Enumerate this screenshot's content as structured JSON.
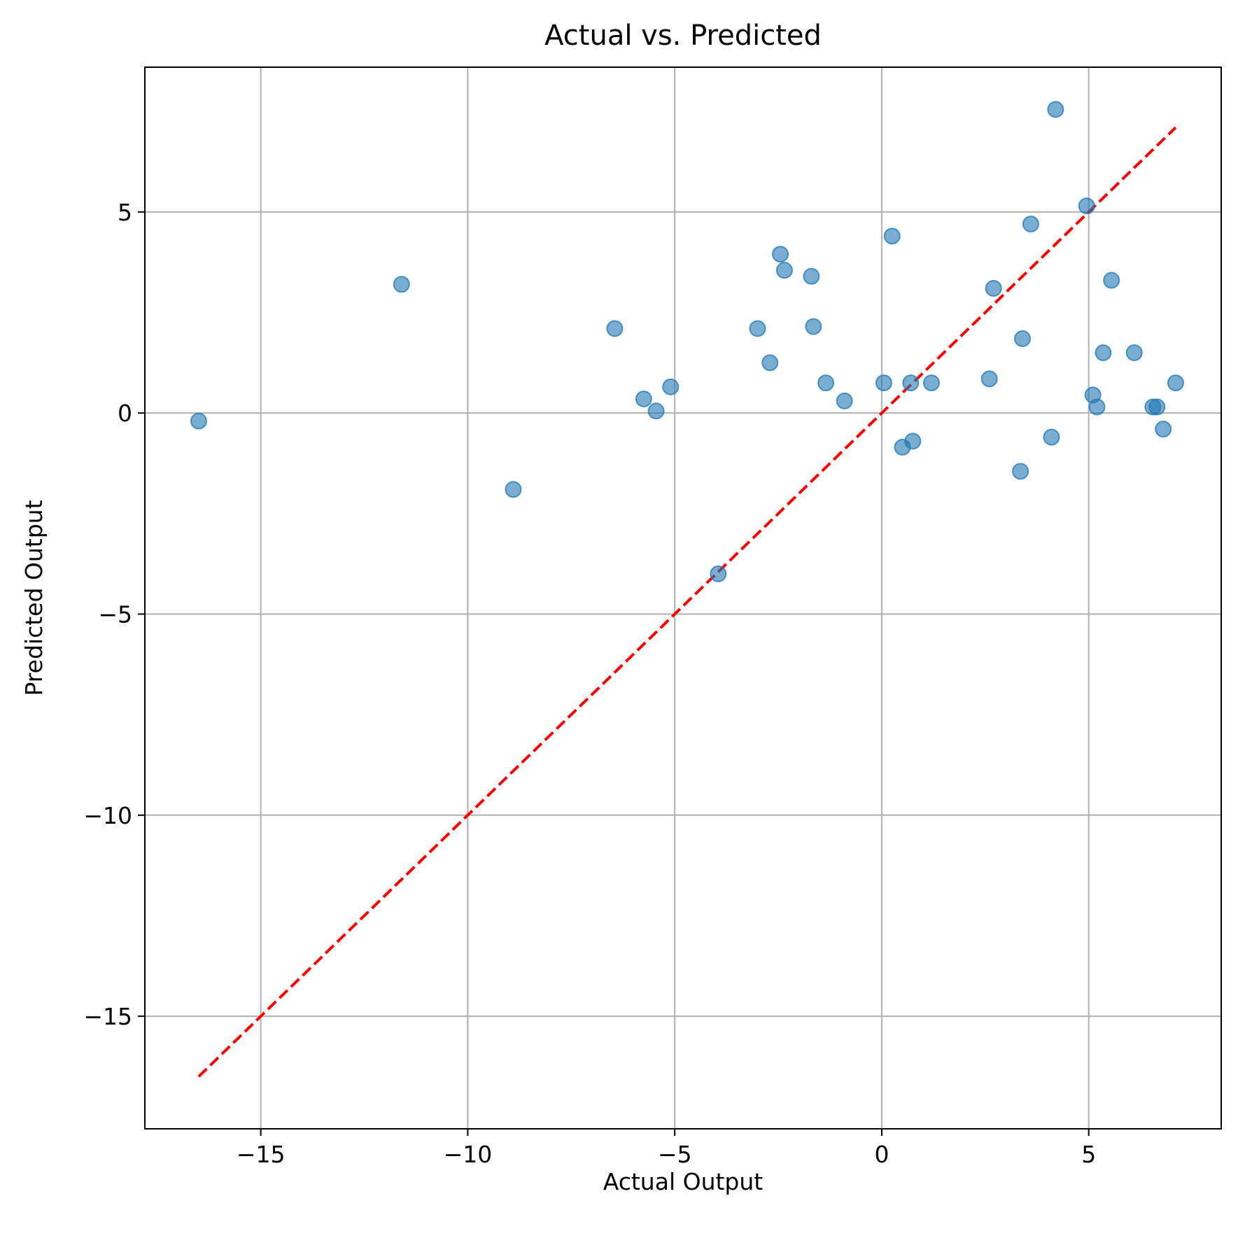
{
  "chart_data": {
    "type": "scatter",
    "title": "Actual vs. Predicted",
    "xlabel": "Actual Output",
    "ylabel": "Predicted Output",
    "xlim": [
      -17.8,
      8.2
    ],
    "ylim": [
      -17.8,
      8.6
    ],
    "xticks": [
      -15,
      -10,
      -5,
      0,
      5
    ],
    "yticks": [
      -15,
      -10,
      -5,
      0,
      5
    ],
    "xtick_labels": [
      "−15",
      "−10",
      "−5",
      "0",
      "5"
    ],
    "ytick_labels": [
      "−15",
      "−10",
      "−5",
      "0",
      "5"
    ],
    "grid": true,
    "point_color": "#1f77b4",
    "point_alpha": 0.6,
    "reference_line": {
      "style": "dashed",
      "color": "#ff0000",
      "from": [
        -16.5,
        -16.5
      ],
      "to": [
        7.1,
        7.1
      ]
    },
    "points": [
      [
        -16.5,
        -0.2
      ],
      [
        -11.6,
        3.2
      ],
      [
        -8.9,
        -1.9
      ],
      [
        -6.45,
        2.1
      ],
      [
        -5.75,
        0.35
      ],
      [
        -5.45,
        0.05
      ],
      [
        -5.1,
        0.65
      ],
      [
        -3.95,
        -4.0
      ],
      [
        -3.0,
        2.1
      ],
      [
        -2.7,
        1.25
      ],
      [
        -2.45,
        3.95
      ],
      [
        -2.35,
        3.55
      ],
      [
        -1.7,
        3.4
      ],
      [
        -1.65,
        2.15
      ],
      [
        -1.35,
        0.75
      ],
      [
        -0.9,
        0.3
      ],
      [
        0.05,
        0.75
      ],
      [
        0.25,
        4.4
      ],
      [
        0.5,
        -0.85
      ],
      [
        0.7,
        0.75
      ],
      [
        0.75,
        -0.7
      ],
      [
        1.2,
        0.75
      ],
      [
        2.6,
        0.85
      ],
      [
        2.7,
        3.1
      ],
      [
        3.35,
        -1.45
      ],
      [
        3.4,
        1.85
      ],
      [
        3.6,
        4.7
      ],
      [
        4.1,
        -0.6
      ],
      [
        4.2,
        7.55
      ],
      [
        4.95,
        5.15
      ],
      [
        5.1,
        0.45
      ],
      [
        5.2,
        0.15
      ],
      [
        5.35,
        1.5
      ],
      [
        5.55,
        3.3
      ],
      [
        6.1,
        1.5
      ],
      [
        6.55,
        0.15
      ],
      [
        6.65,
        0.15
      ],
      [
        6.8,
        -0.4
      ],
      [
        7.1,
        0.75
      ]
    ]
  }
}
